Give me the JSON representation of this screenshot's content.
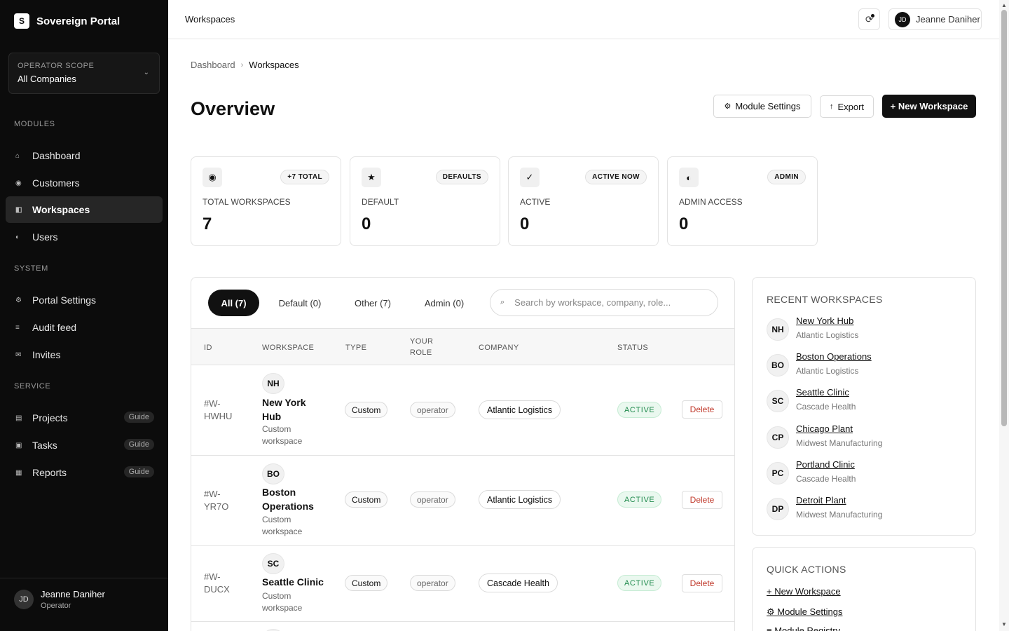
{
  "brand": {
    "logo_letter": "S",
    "name": "Sovereign Portal"
  },
  "scope": {
    "label": "OPERATOR SCOPE",
    "value": "All Companies"
  },
  "sidebar": {
    "modules_label": "MODULES",
    "modules": [
      {
        "label": "Dashboard",
        "icon": "⌂"
      },
      {
        "label": "Customers",
        "icon": "◉"
      },
      {
        "label": "Workspaces",
        "icon": "◧",
        "active": true
      },
      {
        "label": "Users",
        "icon": "◐"
      }
    ],
    "system_label": "SYSTEM",
    "system": [
      {
        "label": "Portal Settings",
        "icon": "⚙"
      },
      {
        "label": "Audit feed",
        "icon": "≡"
      },
      {
        "label": "Invites",
        "icon": "✉"
      }
    ],
    "service_label": "SERVICE",
    "service": [
      {
        "label": "Projects",
        "icon": "▤",
        "badge": "Guide"
      },
      {
        "label": "Tasks",
        "icon": "▣",
        "badge": "Guide"
      },
      {
        "label": "Reports",
        "icon": "▦",
        "badge": "Guide"
      }
    ],
    "user": {
      "initials": "JD",
      "name": "Jeanne Daniher",
      "role": "Operator"
    }
  },
  "topbar": {
    "title": "Workspaces",
    "user_initials": "JD",
    "user_name": "Jeanne Daniher"
  },
  "breadcrumb": {
    "root": "Dashboard",
    "separator": "›",
    "current": "Workspaces"
  },
  "page": {
    "title": "Overview"
  },
  "actions": {
    "module_settings": "Module Settings",
    "export": "Export",
    "new_workspace": "+ New Workspace"
  },
  "stats": [
    {
      "icon": "◉",
      "badge": "+7 TOTAL",
      "label": "TOTAL WORKSPACES",
      "value": "7"
    },
    {
      "icon": "★",
      "badge": "DEFAULTS",
      "label": "DEFAULT",
      "value": "0"
    },
    {
      "icon": "✓",
      "badge": "ACTIVE NOW",
      "label": "ACTIVE",
      "value": "0"
    },
    {
      "icon": "◐",
      "badge": "ADMIN",
      "label": "ADMIN ACCESS",
      "value": "0"
    }
  ],
  "tabs": [
    {
      "label": "All (7)",
      "active": true
    },
    {
      "label": "Default (0)"
    },
    {
      "label": "Other (7)"
    },
    {
      "label": "Admin (0)"
    }
  ],
  "search": {
    "placeholder": "Search by workspace, company, role..."
  },
  "table": {
    "headers": {
      "id": "ID",
      "workspace": "WORKSPACE",
      "type": "TYPE",
      "role_line1": "YOUR",
      "role_line2": "ROLE",
      "company": "COMPANY",
      "status": "STATUS"
    },
    "rows": [
      {
        "id_line1": "#W-",
        "id_line2": "HWHU",
        "initials": "NH",
        "name": "New York Hub",
        "sub": "Custom workspace",
        "type": "Custom",
        "role": "operator",
        "company": "Atlantic Logistics",
        "status": "ACTIVE",
        "action": "Delete"
      },
      {
        "id_line1": "#W-",
        "id_line2": "YR7O",
        "initials": "BO",
        "name": "Boston Operations",
        "sub": "Custom workspace",
        "type": "Custom",
        "role": "operator",
        "company": "Atlantic Logistics",
        "status": "ACTIVE",
        "action": "Delete"
      },
      {
        "id_line1": "#W-",
        "id_line2": "DUCX",
        "initials": "SC",
        "name": "Seattle Clinic",
        "sub": "Custom workspace",
        "type": "Custom",
        "role": "operator",
        "company": "Cascade Health",
        "status": "ACTIVE",
        "action": "Delete"
      }
    ]
  },
  "recent": {
    "title": "RECENT WORKSPACES",
    "items": [
      {
        "initials": "NH",
        "name": "New York Hub",
        "company": "Atlantic Logistics"
      },
      {
        "initials": "BO",
        "name": "Boston Operations",
        "company": "Atlantic Logistics"
      },
      {
        "initials": "SC",
        "name": "Seattle Clinic",
        "company": "Cascade Health"
      },
      {
        "initials": "CP",
        "name": "Chicago Plant",
        "company": "Midwest Manufacturing"
      },
      {
        "initials": "PC",
        "name": "Portland Clinic",
        "company": "Cascade Health"
      },
      {
        "initials": "DP",
        "name": "Detroit Plant",
        "company": "Midwest Manufacturing"
      }
    ]
  },
  "quick_actions": {
    "title": "QUICK ACTIONS",
    "items": [
      "+ New Workspace",
      "⚙ Module Settings",
      "≡ Module Registry"
    ]
  }
}
